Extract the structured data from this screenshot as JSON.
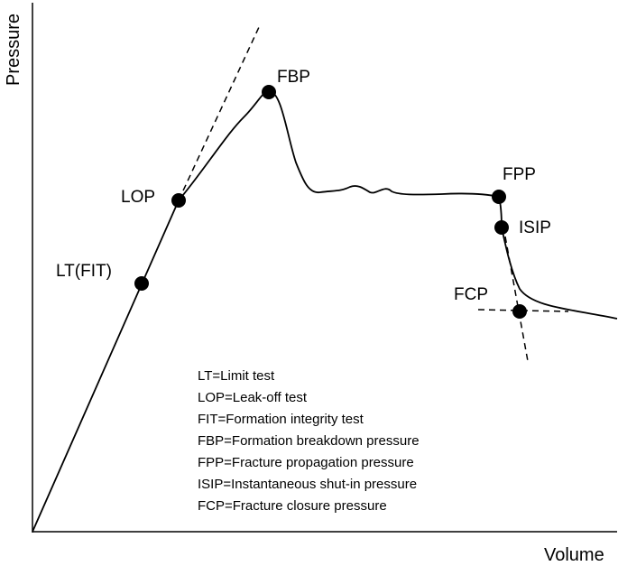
{
  "axes": {
    "x_label": "Volume",
    "y_label": "Pressure"
  },
  "points": {
    "lt": "LT(FIT)",
    "lop": "LOP",
    "fbp": "FBP",
    "fpp": "FPP",
    "isip": "ISIP",
    "fcp": "FCP"
  },
  "legend": [
    "LT=Limit test",
    "LOP=Leak-off test",
    "FIT=Formation integrity test",
    "FBP=Formation breakdown pressure",
    "FPP=Fracture propagation pressure",
    "ISIP=Instantaneous shut-in pressure",
    "FCP=Fracture closure pressure"
  ],
  "colors": {
    "ink": "#000000",
    "background": "#ffffff"
  }
}
